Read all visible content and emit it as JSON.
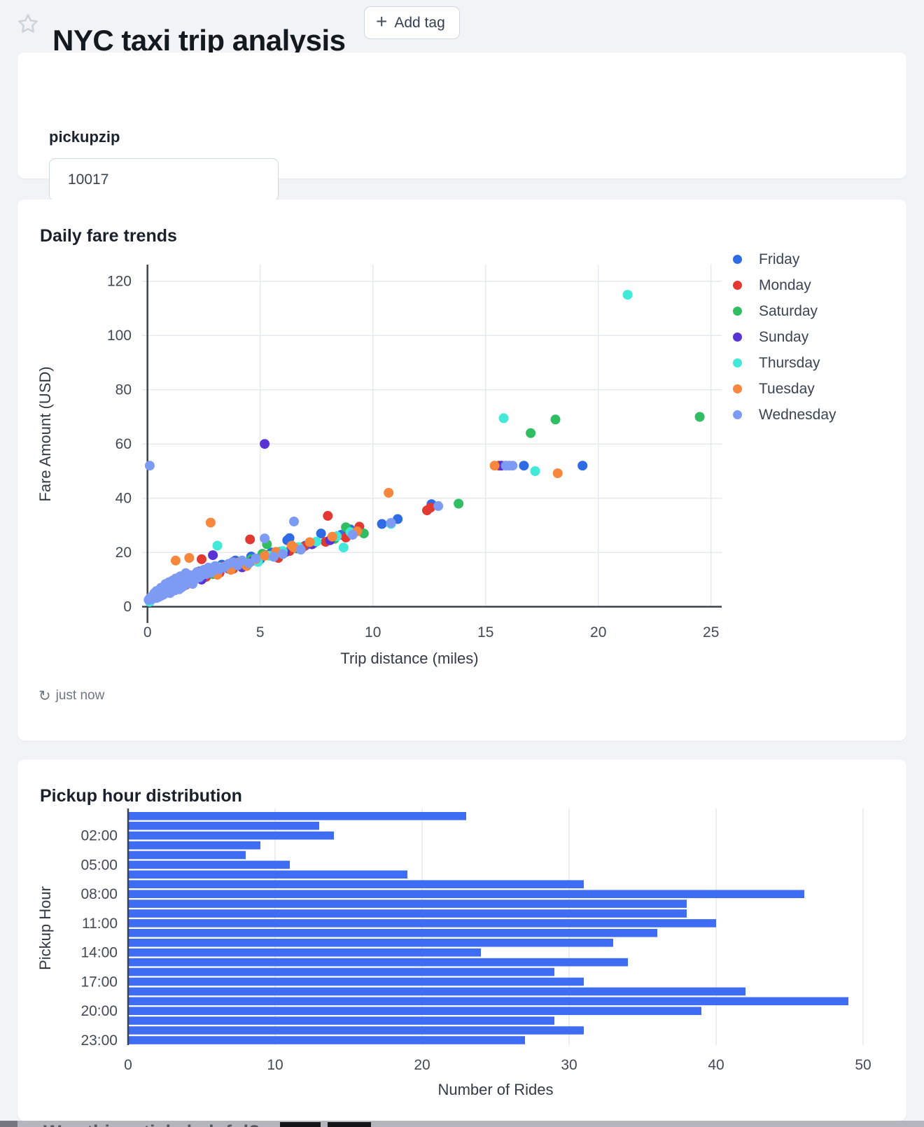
{
  "header": {
    "title": "NYC taxi trip analysis",
    "add_tag_label": "Add tag"
  },
  "params": {
    "label": "pickupzip",
    "value": "10017"
  },
  "refresh_status": "just now",
  "bottom_strip": {
    "text": "Was this article helpful?"
  },
  "colors": {
    "page_bg": "#f1f3f7",
    "card_bg": "#ffffff",
    "grid": "#e7e9ee",
    "axis_dark": "#3d434e",
    "tick_text": "#434a56",
    "bar_blue": "#3e6cf3"
  },
  "chart_data": [
    {
      "type": "scatter",
      "title": "Daily fare trends",
      "xlabel": "Trip distance (miles)",
      "ylabel": "Fare Amount (USD)",
      "x_ticks": [
        0,
        5,
        10,
        15,
        20,
        25
      ],
      "y_ticks": [
        0,
        20,
        40,
        60,
        80,
        100,
        120
      ],
      "xlim": [
        -0.3,
        25.6
      ],
      "ylim": [
        0,
        125
      ],
      "legend_position": "right",
      "series": [
        {
          "name": "Friday",
          "color": "#2e6be5",
          "points": [
            [
              0.4,
              4.5
            ],
            [
              0.7,
              6.5
            ],
            [
              0.9,
              5.2
            ],
            [
              1.1,
              8.5
            ],
            [
              1.3,
              7.0
            ],
            [
              1.5,
              10.0
            ],
            [
              1.7,
              9.0
            ],
            [
              1.9,
              11.5
            ],
            [
              2.1,
              10.2
            ],
            [
              2.3,
              13.0
            ],
            [
              2.5,
              11.5
            ],
            [
              2.8,
              14.0
            ],
            [
              3.0,
              12.5
            ],
            [
              3.3,
              15.5
            ],
            [
              3.6,
              14.0
            ],
            [
              3.9,
              17.0
            ],
            [
              4.2,
              15.5
            ],
            [
              4.6,
              18.5
            ],
            [
              5.0,
              17.5
            ],
            [
              5.5,
              20.0
            ],
            [
              6.2,
              24.5
            ],
            [
              6.3,
              25.3
            ],
            [
              7.0,
              22.5
            ],
            [
              7.7,
              27.0
            ],
            [
              8.6,
              26.5
            ],
            [
              9.0,
              28.5
            ],
            [
              10.4,
              30.5
            ],
            [
              11.1,
              32.3
            ],
            [
              12.6,
              37.8
            ],
            [
              16.7,
              52.0
            ],
            [
              19.3,
              52.0
            ]
          ]
        },
        {
          "name": "Monday",
          "color": "#e23a32",
          "points": [
            [
              0.3,
              4.0
            ],
            [
              0.6,
              6.0
            ],
            [
              0.9,
              7.5
            ],
            [
              1.2,
              6.5
            ],
            [
              1.4,
              9.0
            ],
            [
              1.7,
              8.0
            ],
            [
              2.0,
              10.5
            ],
            [
              2.2,
              12.0
            ],
            [
              2.4,
              17.5
            ],
            [
              2.6,
              11.0
            ],
            [
              2.9,
              13.5
            ],
            [
              3.2,
              12.5
            ],
            [
              3.5,
              15.0
            ],
            [
              3.8,
              14.0
            ],
            [
              4.1,
              16.5
            ],
            [
              4.55,
              24.8
            ],
            [
              4.9,
              17.0
            ],
            [
              5.3,
              19.0
            ],
            [
              5.8,
              18.0
            ],
            [
              6.3,
              20.5
            ],
            [
              6.9,
              22.0
            ],
            [
              7.9,
              23.9
            ],
            [
              8.0,
              33.5
            ],
            [
              8.8,
              25.5
            ],
            [
              9.4,
              29.5
            ],
            [
              12.4,
              35.5
            ],
            [
              12.55,
              36.5
            ],
            [
              15.6,
              52.0
            ]
          ]
        },
        {
          "name": "Saturday",
          "color": "#31bd62",
          "points": [
            [
              0.5,
              5.0
            ],
            [
              0.9,
              7.0
            ],
            [
              1.3,
              8.5
            ],
            [
              1.7,
              10.0
            ],
            [
              2.1,
              11.5
            ],
            [
              2.5,
              13.0
            ],
            [
              2.9,
              12.0
            ],
            [
              3.3,
              14.5
            ],
            [
              3.7,
              16.0
            ],
            [
              4.1,
              15.0
            ],
            [
              4.6,
              17.5
            ],
            [
              5.1,
              19.5
            ],
            [
              5.3,
              23.0
            ],
            [
              5.9,
              20.3
            ],
            [
              6.6,
              21.5
            ],
            [
              7.4,
              23.5
            ],
            [
              8.3,
              25.0
            ],
            [
              8.8,
              29.3
            ],
            [
              9.6,
              27.0
            ],
            [
              13.8,
              38.0
            ],
            [
              17.0,
              64.0
            ],
            [
              18.1,
              69.0
            ],
            [
              24.5,
              70.0
            ]
          ]
        },
        {
          "name": "Sunday",
          "color": "#5a33d4",
          "points": [
            [
              0.3,
              3.8
            ],
            [
              0.6,
              5.5
            ],
            [
              0.9,
              6.8
            ],
            [
              1.2,
              8.2
            ],
            [
              1.5,
              7.4
            ],
            [
              1.8,
              9.8
            ],
            [
              2.1,
              11.0
            ],
            [
              2.4,
              10.0
            ],
            [
              2.7,
              12.5
            ],
            [
              2.9,
              19.0
            ],
            [
              3.0,
              13.5
            ],
            [
              3.4,
              15.0
            ],
            [
              3.8,
              16.5
            ],
            [
              4.2,
              14.5
            ],
            [
              4.7,
              17.0
            ],
            [
              5.2,
              60.0
            ],
            [
              5.6,
              18.5
            ],
            [
              6.1,
              20.0
            ],
            [
              6.7,
              21.5
            ],
            [
              7.3,
              23.0
            ],
            [
              8.1,
              24.5
            ],
            [
              9.2,
              27.5
            ],
            [
              15.7,
              52.0
            ]
          ]
        },
        {
          "name": "Thursday",
          "color": "#42e8d8",
          "points": [
            [
              0.1,
              1.8
            ],
            [
              0.2,
              3.5
            ],
            [
              0.6,
              5.8
            ],
            [
              1.0,
              7.2
            ],
            [
              1.4,
              8.8
            ],
            [
              1.8,
              10.2
            ],
            [
              2.2,
              11.8
            ],
            [
              2.6,
              13.2
            ],
            [
              3.1,
              22.5
            ],
            [
              3.2,
              14.5
            ],
            [
              3.8,
              15.2
            ],
            [
              4.0,
              16.0
            ],
            [
              4.4,
              15.5
            ],
            [
              4.9,
              16.5
            ],
            [
              5.4,
              18.8
            ],
            [
              6.0,
              20.5
            ],
            [
              6.7,
              22.0
            ],
            [
              7.5,
              24.0
            ],
            [
              8.4,
              26.0
            ],
            [
              8.7,
              21.8
            ],
            [
              9.0,
              27.5
            ],
            [
              10.8,
              30.5
            ],
            [
              15.8,
              69.5
            ],
            [
              17.2,
              50.0
            ],
            [
              21.3,
              115.0
            ]
          ]
        },
        {
          "name": "Tuesday",
          "color": "#f6873c",
          "points": [
            [
              0.3,
              4.2
            ],
            [
              0.6,
              6.2
            ],
            [
              0.9,
              8.0
            ],
            [
              1.2,
              7.0
            ],
            [
              1.25,
              17.0
            ],
            [
              1.5,
              9.5
            ],
            [
              1.8,
              8.8
            ],
            [
              1.85,
              18.0
            ],
            [
              2.1,
              10.8
            ],
            [
              2.4,
              12.2
            ],
            [
              2.8,
              13.0
            ],
            [
              2.8,
              31.0
            ],
            [
              3.1,
              11.8
            ],
            [
              3.4,
              14.8
            ],
            [
              3.7,
              13.6
            ],
            [
              4.0,
              16.2
            ],
            [
              4.4,
              15.0
            ],
            [
              4.8,
              17.5
            ],
            [
              5.2,
              18.8
            ],
            [
              5.7,
              20.2
            ],
            [
              6.4,
              22.5
            ],
            [
              6.5,
              21.8
            ],
            [
              7.2,
              23.8
            ],
            [
              8.2,
              25.8
            ],
            [
              9.3,
              27.8
            ],
            [
              10.7,
              42.0
            ],
            [
              15.4,
              52.0
            ],
            [
              18.2,
              49.2
            ]
          ]
        },
        {
          "name": "Wednesday",
          "color": "#7e9bf4",
          "points": [
            [
              0.05,
              2.5
            ],
            [
              0.1,
              3.0
            ],
            [
              0.15,
              3.5
            ],
            [
              0.2,
              2.8
            ],
            [
              0.25,
              4.2
            ],
            [
              0.3,
              3.4
            ],
            [
              0.3,
              5.0
            ],
            [
              0.35,
              4.0
            ],
            [
              0.4,
              3.2
            ],
            [
              0.4,
              5.8
            ],
            [
              0.45,
              4.6
            ],
            [
              0.5,
              3.6
            ],
            [
              0.5,
              5.2
            ],
            [
              0.55,
              6.4
            ],
            [
              0.6,
              4.0
            ],
            [
              0.6,
              7.0
            ],
            [
              0.65,
              5.0
            ],
            [
              0.7,
              4.4
            ],
            [
              0.7,
              6.0
            ],
            [
              0.75,
              7.6
            ],
            [
              0.8,
              5.0
            ],
            [
              0.8,
              8.4
            ],
            [
              0.85,
              6.2
            ],
            [
              0.9,
              5.4
            ],
            [
              0.9,
              7.0
            ],
            [
              0.95,
              9.0
            ],
            [
              1.0,
              5.0
            ],
            [
              1.0,
              6.6
            ],
            [
              1.05,
              8.0
            ],
            [
              1.1,
              5.8
            ],
            [
              1.1,
              9.6
            ],
            [
              1.15,
              7.2
            ],
            [
              1.2,
              6.0
            ],
            [
              1.2,
              8.6
            ],
            [
              1.25,
              10.4
            ],
            [
              1.3,
              6.6
            ],
            [
              1.3,
              9.0
            ],
            [
              1.35,
              7.8
            ],
            [
              1.4,
              6.4
            ],
            [
              1.4,
              10.0
            ],
            [
              1.45,
              11.2
            ],
            [
              1.5,
              7.0
            ],
            [
              1.5,
              8.8
            ],
            [
              1.6,
              7.6
            ],
            [
              1.6,
              11.0
            ],
            [
              1.7,
              8.2
            ],
            [
              1.7,
              12.4
            ],
            [
              1.8,
              9.0
            ],
            [
              1.8,
              10.6
            ],
            [
              1.9,
              9.6
            ],
            [
              2.0,
              8.4
            ],
            [
              2.0,
              11.6
            ],
            [
              2.1,
              10.0
            ],
            [
              2.2,
              12.8
            ],
            [
              2.3,
              10.8
            ],
            [
              2.4,
              11.6
            ],
            [
              2.5,
              13.6
            ],
            [
              2.6,
              12.0
            ],
            [
              2.7,
              14.4
            ],
            [
              2.8,
              12.6
            ],
            [
              2.9,
              13.2
            ],
            [
              3.0,
              15.0
            ],
            [
              3.2,
              13.8
            ],
            [
              3.4,
              14.6
            ],
            [
              3.6,
              15.8
            ],
            [
              3.8,
              16.4
            ],
            [
              4.0,
              15.2
            ],
            [
              4.2,
              17.0
            ],
            [
              4.5,
              16.0
            ],
            [
              4.8,
              17.8
            ],
            [
              5.2,
              25.2
            ],
            [
              5.6,
              18.4
            ],
            [
              6.0,
              19.4
            ],
            [
              6.5,
              31.4
            ],
            [
              6.8,
              21.0
            ],
            [
              9.1,
              26.5
            ],
            [
              10.8,
              30.9
            ],
            [
              12.9,
              37.1
            ],
            [
              15.9,
              52.0
            ],
            [
              16.05,
              52.0
            ],
            [
              16.2,
              52.0
            ],
            [
              0.1,
              52.0
            ]
          ]
        }
      ]
    },
    {
      "type": "bar",
      "title": "Pickup hour distribution",
      "orientation": "horizontal",
      "xlabel": "Number of Rides",
      "ylabel": "Pickup Hour",
      "bar_color": "#3e6cf3",
      "categories": [
        "00:00",
        "01:00",
        "02:00",
        "03:00",
        "04:00",
        "05:00",
        "06:00",
        "07:00",
        "08:00",
        "09:00",
        "10:00",
        "11:00",
        "12:00",
        "13:00",
        "14:00",
        "15:00",
        "16:00",
        "17:00",
        "18:00",
        "19:00",
        "20:00",
        "21:00",
        "22:00",
        "23:00"
      ],
      "values": [
        23,
        13,
        14,
        9,
        8,
        11,
        19,
        31,
        46,
        38,
        38,
        40,
        36,
        33,
        24,
        34,
        29,
        31,
        42,
        49,
        39,
        29,
        31,
        27
      ],
      "category_tick_indices": [
        2,
        5,
        8,
        11,
        14,
        17,
        20,
        23
      ],
      "x_ticks": [
        0,
        10,
        20,
        30,
        40,
        50
      ],
      "xlim": [
        0,
        50.5
      ],
      "grid": true
    }
  ]
}
